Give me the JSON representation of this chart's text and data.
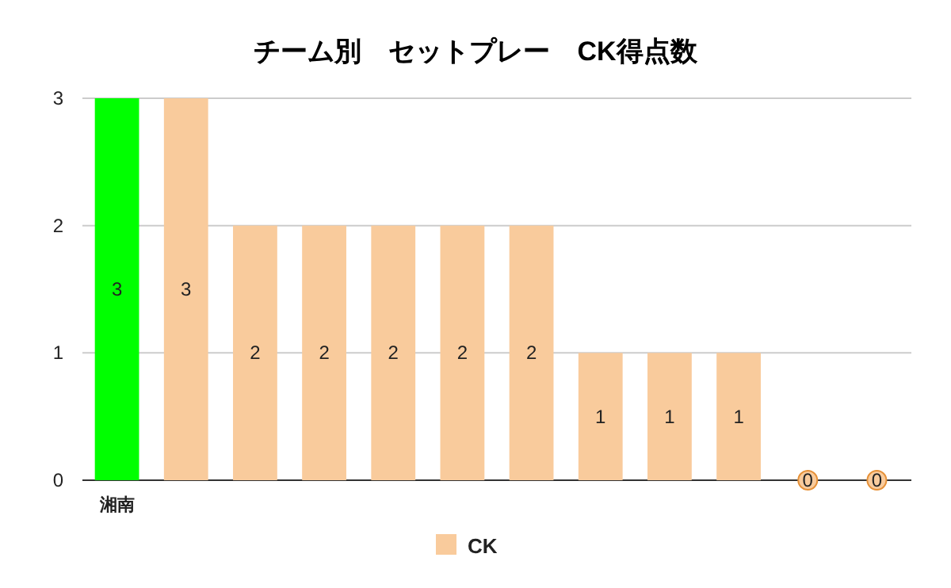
{
  "chart_data": {
    "type": "bar",
    "title": "チーム別　セットプレー　CK得点数",
    "categories": [
      "湘南",
      null,
      null,
      null,
      null,
      null,
      null,
      null,
      null,
      null,
      null,
      null
    ],
    "series": [
      {
        "name": "CK",
        "color": "#f9cb9c",
        "colors": [
          "#00ff00",
          "#f9cb9c",
          "#f9cb9c",
          "#f9cb9c",
          "#f9cb9c",
          "#f9cb9c",
          "#f9cb9c",
          "#f9cb9c",
          "#f9cb9c",
          "#f9cb9c",
          "#f9cb9c",
          "#f9cb9c"
        ],
        "values": [
          3,
          3,
          2,
          2,
          2,
          2,
          2,
          1,
          1,
          1,
          0,
          0
        ]
      }
    ],
    "ylim": [
      0,
      3
    ],
    "yticks": [
      0,
      1,
      2,
      3
    ],
    "grid": "y",
    "legend": "bottom",
    "data_labels": true
  }
}
